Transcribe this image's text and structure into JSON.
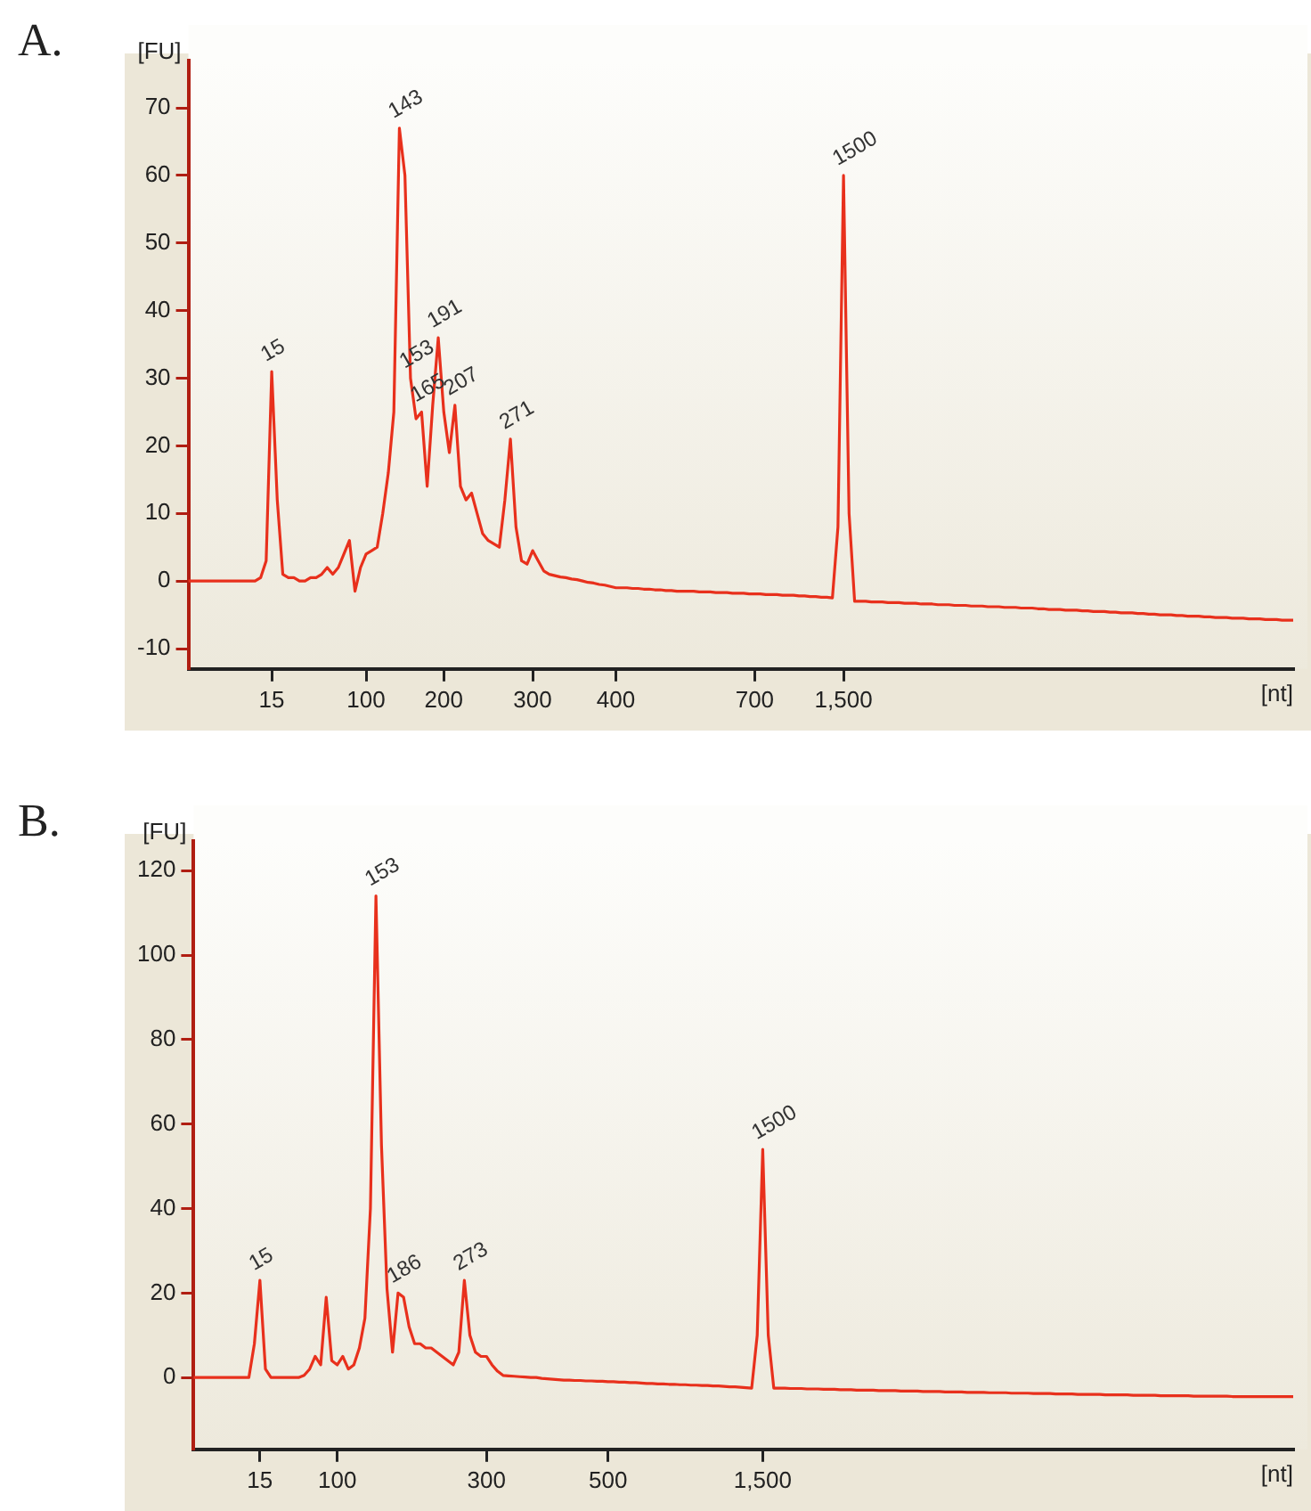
{
  "chart_data": [
    {
      "type": "line",
      "title": "A.",
      "ylabel": "[FU]",
      "xlabel": "[nt]",
      "grid": false,
      "legend": false,
      "marker": "none",
      "line_style": "solid",
      "categories": [
        null,
        null,
        null,
        null,
        null,
        null,
        null,
        null,
        null,
        null,
        null,
        null,
        null,
        null,
        null,
        "15",
        null,
        null,
        null,
        null,
        null,
        null,
        null,
        null,
        null,
        null,
        null,
        null,
        null,
        null,
        null,
        null,
        "100",
        null,
        null,
        null,
        null,
        null,
        null,
        null,
        null,
        null,
        null,
        null,
        null,
        null,
        "200",
        null,
        null,
        null,
        null,
        null,
        null,
        null,
        null,
        null,
        null,
        null,
        null,
        null,
        null,
        null,
        "300",
        null,
        null,
        null,
        null,
        null,
        null,
        null,
        null,
        null,
        null,
        null,
        null,
        null,
        null,
        "400",
        null,
        null,
        null,
        null,
        null,
        null,
        null,
        null,
        null,
        null,
        null,
        null,
        null,
        null,
        null,
        null,
        null,
        null,
        null,
        null,
        null,
        null,
        null,
        null,
        "700",
        null,
        null,
        null,
        null,
        null,
        null,
        null,
        null,
        null,
        null,
        null,
        null,
        null,
        null,
        null,
        "1,500",
        null,
        null,
        null,
        null,
        null,
        null,
        null,
        null,
        null,
        null,
        null,
        null,
        null,
        null,
        null,
        null,
        null,
        null,
        null,
        null,
        null,
        null,
        null,
        null,
        null,
        null,
        null,
        null,
        null,
        null,
        null,
        null,
        null,
        null,
        null,
        null,
        null,
        null,
        null,
        null,
        null,
        null,
        null,
        null,
        null,
        null,
        null,
        null,
        null,
        null,
        null,
        null,
        null,
        null,
        null,
        null,
        null,
        null,
        null,
        null,
        null,
        null,
        null,
        null,
        null,
        null,
        null,
        null,
        null,
        null,
        null,
        null,
        null,
        null,
        null,
        null,
        null,
        null,
        null,
        null,
        null
      ],
      "series": [
        {
          "color": "#e8301c",
          "values": [
            0,
            0,
            0,
            0,
            0,
            0,
            0,
            0,
            0,
            0,
            0,
            0,
            0,
            0.5,
            3,
            31,
            12,
            1,
            0.5,
            0.5,
            0,
            0,
            0.5,
            0.5,
            1,
            2,
            1,
            2,
            4,
            6,
            -1.5,
            2,
            4,
            4.5,
            5,
            10,
            16,
            25,
            67,
            60,
            30,
            24,
            25,
            14,
            26,
            36,
            25,
            19,
            26,
            14,
            12,
            13,
            10,
            7,
            6,
            5.5,
            5,
            12,
            21,
            8,
            3,
            2.5,
            4.5,
            3,
            1.5,
            1,
            0.8,
            0.6,
            0.5,
            0.3,
            0.2,
            0,
            -0.2,
            -0.3,
            -0.5,
            -0.6,
            -0.8,
            -1,
            -1,
            -1,
            -1.1,
            -1.1,
            -1.2,
            -1.2,
            -1.3,
            -1.3,
            -1.4,
            -1.4,
            -1.5,
            -1.5,
            -1.5,
            -1.5,
            -1.6,
            -1.6,
            -1.6,
            -1.7,
            -1.7,
            -1.7,
            -1.8,
            -1.8,
            -1.8,
            -1.9,
            -1.9,
            -1.9,
            -2,
            -2,
            -2,
            -2.1,
            -2.1,
            -2.1,
            -2.2,
            -2.2,
            -2.3,
            -2.3,
            -2.4,
            -2.4,
            -2.5,
            8,
            60,
            10,
            -3,
            -3,
            -3,
            -3.1,
            -3.1,
            -3.1,
            -3.2,
            -3.2,
            -3.2,
            -3.3,
            -3.3,
            -3.3,
            -3.4,
            -3.4,
            -3.4,
            -3.5,
            -3.5,
            -3.5,
            -3.6,
            -3.6,
            -3.6,
            -3.7,
            -3.7,
            -3.7,
            -3.8,
            -3.8,
            -3.8,
            -3.9,
            -3.9,
            -3.9,
            -4,
            -4,
            -4,
            -4.1,
            -4.1,
            -4.2,
            -4.2,
            -4.2,
            -4.3,
            -4.3,
            -4.3,
            -4.4,
            -4.4,
            -4.5,
            -4.5,
            -4.5,
            -4.6,
            -4.6,
            -4.7,
            -4.7,
            -4.7,
            -4.8,
            -4.8,
            -4.9,
            -4.9,
            -5,
            -5,
            -5,
            -5.1,
            -5.1,
            -5.2,
            -5.2,
            -5.2,
            -5.3,
            -5.3,
            -5.4,
            -5.4,
            -5.4,
            -5.5,
            -5.5,
            -5.5,
            -5.6,
            -5.6,
            -5.6,
            -5.7,
            -5.7,
            -5.7,
            -5.8,
            -5.8,
            -5.8
          ]
        }
      ],
      "ylim": [
        -13,
        77
      ],
      "yticks": [
        -10,
        0,
        10,
        20,
        30,
        40,
        50,
        60,
        70
      ],
      "annotations": [
        {
          "text": "15",
          "x": "15",
          "y": 31
        },
        {
          "text": "143",
          "y": 67
        },
        {
          "text": "153",
          "y": 30
        },
        {
          "text": "165",
          "y": 25
        },
        {
          "text": "191",
          "y": 36
        },
        {
          "text": "207",
          "y": 26
        },
        {
          "text": "271",
          "y": 21
        },
        {
          "text": "1500",
          "x": "1,500",
          "y": 60
        }
      ]
    },
    {
      "type": "line",
      "title": "B.",
      "ylabel": "[FU]",
      "xlabel": "[nt]",
      "grid": false,
      "legend": false,
      "marker": "none",
      "line_style": "solid",
      "categories": [
        null,
        null,
        null,
        null,
        null,
        null,
        null,
        null,
        null,
        null,
        null,
        null,
        "15",
        null,
        null,
        null,
        null,
        null,
        null,
        null,
        null,
        null,
        null,
        null,
        null,
        null,
        "100",
        null,
        null,
        null,
        null,
        null,
        null,
        null,
        null,
        null,
        null,
        null,
        null,
        null,
        null,
        null,
        null,
        null,
        null,
        null,
        null,
        null,
        null,
        null,
        null,
        null,
        null,
        "300",
        null,
        null,
        null,
        null,
        null,
        null,
        null,
        null,
        null,
        null,
        null,
        null,
        null,
        null,
        null,
        null,
        null,
        null,
        null,
        null,
        null,
        "500",
        null,
        null,
        null,
        null,
        null,
        null,
        null,
        null,
        null,
        null,
        null,
        null,
        null,
        null,
        null,
        null,
        null,
        null,
        null,
        null,
        null,
        null,
        null,
        null,
        null,
        null,
        null,
        "1,500",
        null,
        null,
        null,
        null,
        null,
        null,
        null,
        null,
        null,
        null,
        null,
        null,
        null,
        null,
        null,
        null,
        null,
        null,
        null,
        null,
        null,
        null,
        null,
        null,
        null,
        null,
        null,
        null,
        null,
        null,
        null,
        null,
        null,
        null,
        null,
        null,
        null,
        null,
        null,
        null,
        null,
        null,
        null,
        null,
        null,
        null,
        null,
        null,
        null,
        null,
        null,
        null,
        null,
        null,
        null,
        null,
        null,
        null,
        null,
        null,
        null,
        null,
        null,
        null,
        null,
        null,
        null,
        null,
        null,
        null,
        null,
        null,
        null,
        null,
        null,
        null,
        null,
        null,
        null,
        null,
        null,
        null,
        null,
        null,
        null,
        null,
        null,
        null,
        null,
        null,
        null,
        null,
        null,
        null,
        null,
        null
      ],
      "series": [
        {
          "color": "#e8301c",
          "values": [
            0,
            0,
            0,
            0,
            0,
            0,
            0,
            0,
            0,
            0,
            0,
            8,
            23,
            2,
            0,
            0,
            0,
            0,
            0,
            0,
            0.5,
            2,
            5,
            3,
            19,
            4,
            3,
            5,
            2,
            3,
            7,
            14,
            40,
            114,
            55,
            21,
            6,
            20,
            19,
            12,
            8,
            8,
            7,
            7,
            6,
            5,
            4,
            3,
            6,
            23,
            10,
            6,
            5,
            5,
            3,
            1.5,
            0.5,
            0.4,
            0.3,
            0.2,
            0.1,
            0,
            0,
            -0.2,
            -0.3,
            -0.4,
            -0.5,
            -0.6,
            -0.6,
            -0.7,
            -0.7,
            -0.8,
            -0.8,
            -0.9,
            -0.9,
            -1,
            -1,
            -1.1,
            -1.1,
            -1.2,
            -1.2,
            -1.3,
            -1.4,
            -1.4,
            -1.5,
            -1.5,
            -1.6,
            -1.6,
            -1.7,
            -1.7,
            -1.8,
            -1.8,
            -1.9,
            -1.9,
            -2,
            -2,
            -2.1,
            -2.2,
            -2.2,
            -2.3,
            -2.4,
            -2.5,
            10,
            54,
            10,
            -2.5,
            -2.5,
            -2.5,
            -2.6,
            -2.6,
            -2.6,
            -2.7,
            -2.7,
            -2.7,
            -2.8,
            -2.8,
            -2.8,
            -2.9,
            -2.9,
            -2.9,
            -3,
            -3,
            -3,
            -3,
            -3.1,
            -3.1,
            -3.1,
            -3.1,
            -3.2,
            -3.2,
            -3.2,
            -3.2,
            -3.3,
            -3.3,
            -3.3,
            -3.3,
            -3.4,
            -3.4,
            -3.4,
            -3.4,
            -3.5,
            -3.5,
            -3.5,
            -3.5,
            -3.6,
            -3.6,
            -3.6,
            -3.6,
            -3.7,
            -3.7,
            -3.7,
            -3.7,
            -3.8,
            -3.8,
            -3.8,
            -3.8,
            -3.9,
            -3.9,
            -3.9,
            -3.9,
            -4,
            -4,
            -4,
            -4,
            -4,
            -4.1,
            -4.1,
            -4.1,
            -4.1,
            -4.1,
            -4.2,
            -4.2,
            -4.2,
            -4.2,
            -4.2,
            -4.3,
            -4.3,
            -4.3,
            -4.3,
            -4.3,
            -4.3,
            -4.4,
            -4.4,
            -4.4,
            -4.4,
            -4.4,
            -4.4,
            -4.4,
            -4.5,
            -4.5,
            -4.5,
            -4.5,
            -4.5,
            -4.5,
            -4.5,
            -4.5,
            -4.5,
            -4.5,
            -4.5,
            -4.5
          ]
        }
      ],
      "ylim": [
        -17,
        127
      ],
      "yticks": [
        0,
        20,
        40,
        60,
        80,
        100,
        120
      ],
      "annotations": [
        {
          "text": "15",
          "x": "15",
          "y": 23
        },
        {
          "text": "153",
          "y": 114
        },
        {
          "text": "186",
          "y": 20
        },
        {
          "text": "273",
          "y": 23
        },
        {
          "text": "1500",
          "x": "1,500",
          "y": 54
        }
      ]
    }
  ]
}
